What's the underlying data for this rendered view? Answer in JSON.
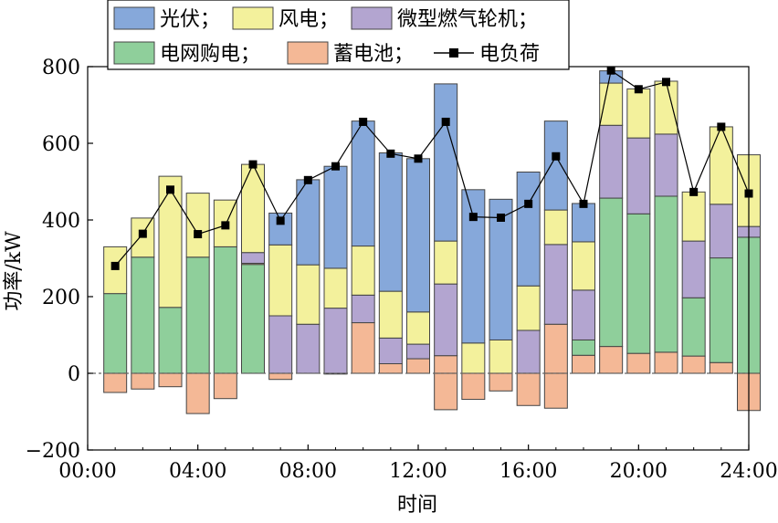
{
  "chart_data": {
    "type": "bar",
    "stacked": true,
    "xlabel": "时间",
    "ylabel": "功率/kW",
    "ylim": [
      -200,
      800
    ],
    "yticks": [
      "−200",
      "0",
      "200",
      "400",
      "600",
      "800"
    ],
    "ytick_values": [
      -200,
      0,
      200,
      400,
      600,
      800
    ],
    "xlim": [
      0,
      24
    ],
    "xticks": [
      "00:00",
      "04:00",
      "08:00",
      "12:00",
      "16:00",
      "20:00",
      "24:00"
    ],
    "xtick_values": [
      0,
      4,
      8,
      12,
      16,
      20,
      24
    ],
    "hours": [
      1,
      2,
      3,
      4,
      5,
      6,
      7,
      8,
      9,
      10,
      11,
      12,
      13,
      14,
      15,
      16,
      17,
      18,
      19,
      20,
      21,
      22,
      23,
      24
    ],
    "series": [
      {
        "name": "光伏",
        "color": "#86a8da",
        "values": [
          0,
          0,
          0,
          0,
          0,
          0,
          83,
          222,
          266,
          326,
          361,
          400,
          410,
          400,
          367,
          297,
          232,
          100,
          32,
          0,
          0,
          0,
          0,
          0
        ]
      },
      {
        "name": "风电",
        "color": "#f3f19c",
        "values": [
          122,
          102,
          342,
          167,
          122,
          230,
          185,
          155,
          104,
          128,
          122,
          84,
          112,
          79,
          87,
          116,
          90,
          126,
          110,
          128,
          138,
          128,
          202,
          187
        ]
      },
      {
        "name": "微型燃气轮机",
        "color": "#b3a5d0",
        "values": [
          0,
          0,
          0,
          0,
          0,
          28,
          150,
          128,
          170,
          72,
          67,
          38,
          187,
          0,
          0,
          112,
          208,
          130,
          190,
          198,
          162,
          148,
          140,
          28
        ]
      },
      {
        "name": "电网购电",
        "color": "#8fcf9b",
        "values": [
          208,
          303,
          172,
          303,
          330,
          284,
          0,
          0,
          0,
          0,
          0,
          0,
          0,
          0,
          0,
          0,
          0,
          0,
          0,
          0,
          0,
          0,
          0,
          0
        ]
      },
      {
        "name": "蓄电池",
        "color": "#f4b896",
        "values": [
          0,
          0,
          0,
          0,
          0,
          3,
          0,
          0,
          0,
          132,
          25,
          38,
          46,
          0,
          0,
          0,
          128,
          47,
          70,
          52,
          55,
          45,
          28,
          0
        ]
      }
    ],
    "grid_above": [
      0,
      0,
      0,
      0,
      0,
      0,
      0,
      0,
      0,
      0,
      0,
      0,
      0,
      0,
      0,
      0,
      0,
      40,
      387,
      364,
      407,
      152,
      273,
      355
    ],
    "battery_negative": [
      -50,
      -41,
      -35,
      -105,
      -66,
      0,
      -16,
      0,
      -2,
      0,
      0,
      0,
      -95,
      -68,
      -46,
      -84,
      -91,
      0,
      0,
      0,
      0,
      0,
      0,
      -97
    ],
    "load": {
      "name": "电负荷",
      "color": "#000000",
      "values": [
        280,
        364,
        479,
        363,
        386,
        545,
        398,
        504,
        540,
        656,
        573,
        560,
        656,
        408,
        406,
        442,
        566,
        442,
        790,
        741,
        760,
        473,
        643,
        469
      ]
    },
    "legend_rows": [
      [
        {
          "label": "光伏；",
          "key": "pv"
        },
        {
          "label": "风电；",
          "key": "wind"
        },
        {
          "label": "微型燃气轮机；",
          "key": "mt"
        }
      ],
      [
        {
          "label": "电网购电；",
          "key": "grid"
        },
        {
          "label": "蓄电池；",
          "key": "bat"
        },
        {
          "label": "电负荷",
          "key": "load"
        }
      ]
    ]
  }
}
